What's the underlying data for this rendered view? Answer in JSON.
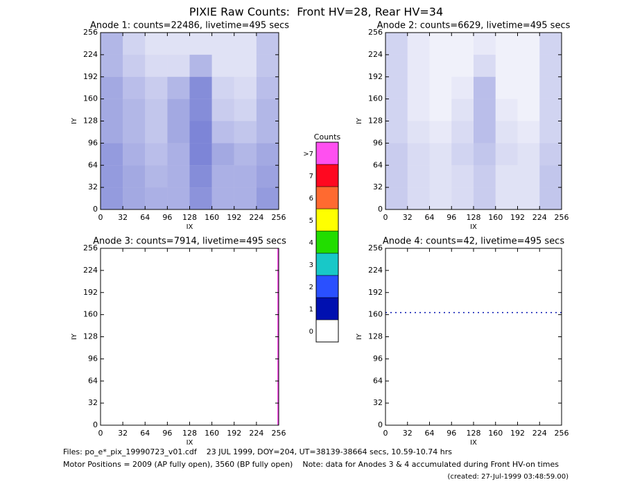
{
  "title": "PIXIE Raw Counts:  Front HV=28, Rear HV=34",
  "chart_data": [
    {
      "type": "heatmap",
      "title": "Anode 1: counts=22486, livetime=495 secs",
      "xlabel": "IX",
      "ylabel": "IY",
      "xlim": [
        0,
        256
      ],
      "ylim": [
        0,
        256
      ],
      "xticks": [
        0,
        32,
        64,
        96,
        128,
        160,
        192,
        224,
        256
      ],
      "yticks": [
        0,
        32,
        64,
        96,
        128,
        160,
        192,
        224,
        256
      ],
      "color": "#0010b0",
      "density": [
        [
          0.5,
          0.3,
          0.2,
          0.2,
          0.2,
          0.2,
          0.2,
          0.4
        ],
        [
          0.5,
          0.35,
          0.25,
          0.25,
          0.5,
          0.2,
          0.2,
          0.4
        ],
        [
          0.6,
          0.45,
          0.35,
          0.5,
          0.8,
          0.3,
          0.25,
          0.45
        ],
        [
          0.6,
          0.5,
          0.4,
          0.6,
          0.8,
          0.35,
          0.3,
          0.5
        ],
        [
          0.6,
          0.5,
          0.4,
          0.6,
          0.85,
          0.45,
          0.4,
          0.5
        ],
        [
          0.7,
          0.55,
          0.45,
          0.55,
          0.85,
          0.6,
          0.5,
          0.6
        ],
        [
          0.7,
          0.6,
          0.5,
          0.55,
          0.8,
          0.55,
          0.55,
          0.65
        ],
        [
          0.7,
          0.6,
          0.55,
          0.55,
          0.75,
          0.55,
          0.55,
          0.7
        ]
      ]
    },
    {
      "type": "heatmap",
      "title": "Anode 2: counts=6629, livetime=495 secs",
      "xlabel": "IX",
      "ylabel": "IY",
      "xlim": [
        0,
        256
      ],
      "ylim": [
        0,
        256
      ],
      "xticks": [
        0,
        32,
        64,
        96,
        128,
        160,
        192,
        224,
        256
      ],
      "yticks": [
        0,
        32,
        64,
        96,
        128,
        160,
        192,
        224,
        256
      ],
      "color": "#0010b0",
      "density": [
        [
          0.3,
          0.15,
          0.1,
          0.1,
          0.15,
          0.1,
          0.1,
          0.3
        ],
        [
          0.3,
          0.15,
          0.1,
          0.1,
          0.25,
          0.1,
          0.1,
          0.3
        ],
        [
          0.3,
          0.15,
          0.1,
          0.15,
          0.45,
          0.1,
          0.1,
          0.3
        ],
        [
          0.3,
          0.15,
          0.1,
          0.2,
          0.45,
          0.15,
          0.1,
          0.3
        ],
        [
          0.3,
          0.2,
          0.15,
          0.25,
          0.45,
          0.2,
          0.15,
          0.3
        ],
        [
          0.35,
          0.25,
          0.2,
          0.3,
          0.4,
          0.25,
          0.2,
          0.35
        ],
        [
          0.35,
          0.25,
          0.2,
          0.25,
          0.35,
          0.2,
          0.2,
          0.4
        ],
        [
          0.35,
          0.25,
          0.2,
          0.25,
          0.35,
          0.2,
          0.2,
          0.4
        ]
      ]
    },
    {
      "type": "heatmap",
      "title": "Anode 3: counts=7914, livetime=495 secs",
      "xlabel": "IX",
      "ylabel": "IY",
      "xlim": [
        0,
        256
      ],
      "ylim": [
        0,
        256
      ],
      "xticks": [
        0,
        32,
        64,
        96,
        128,
        160,
        192,
        224,
        256
      ],
      "yticks": [
        0,
        32,
        64,
        96,
        128,
        160,
        192,
        224,
        256
      ],
      "color": "#ff50f0",
      "line_ix": 256
    },
    {
      "type": "heatmap",
      "title": "Anode 4: counts=42, livetime=495 secs",
      "xlabel": "IX",
      "ylabel": "IY",
      "xlim": [
        0,
        256
      ],
      "ylim": [
        0,
        256
      ],
      "xticks": [
        0,
        32,
        64,
        96,
        128,
        160,
        192,
        224,
        256
      ],
      "yticks": [
        0,
        32,
        64,
        96,
        128,
        160,
        192,
        224,
        256
      ],
      "color": "#0010b0",
      "line_iy": 163
    }
  ],
  "colorbar": {
    "title": "Counts",
    "labels": [
      "0",
      "1",
      "2",
      "3",
      "4",
      "5",
      "6",
      "7",
      ">7"
    ],
    "colors": [
      "#ffffff",
      "#0010b0",
      "#2a50ff",
      "#18c8c8",
      "#22dd00",
      "#ffff00",
      "#ff6a30",
      "#ff0820",
      "#ff50f0"
    ]
  },
  "footer": [
    "Files: po_e*_pix_19990723_v01.cdf    23 JUL 1999, DOY=204, UT=38139-38664 secs, 10.59-10.74 hrs",
    "Motor Positions = 2009 (AP fully open), 3560 (BP fully open)    Note: data for Anodes 3 & 4 accumulated during Front HV-on times",
    "(created: 27-Jul-1999 03:48:59.00)"
  ]
}
